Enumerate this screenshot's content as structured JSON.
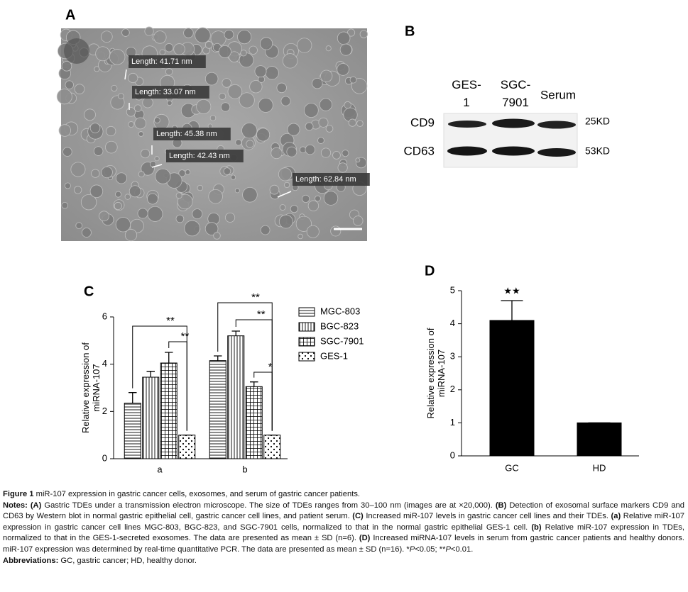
{
  "panels": {
    "a": {
      "letter": "A",
      "measurements": [
        "Length: 41.71 nm",
        "Length: 33.07 nm",
        "Length: 45.38 nm",
        "Length: 42.43 nm",
        "Length: 62.84 nm"
      ]
    },
    "b": {
      "letter": "B",
      "lanes": [
        "GES-1",
        "SGC-7901",
        "Serum"
      ],
      "markers": [
        "CD9",
        "CD63"
      ],
      "sizes": [
        "25KD",
        "53KD"
      ]
    }
  },
  "chart_data": [
    {
      "type": "bar",
      "letter": "C",
      "ylabel": [
        "Relative expression of",
        "miRNA-107"
      ],
      "categories": [
        "a",
        "b"
      ],
      "series": [
        {
          "name": "MGC-803",
          "pattern": "horizontal",
          "values": [
            2.35,
            4.15
          ],
          "errors": [
            0.45,
            0.2
          ]
        },
        {
          "name": "BGC-823",
          "pattern": "vertical",
          "values": [
            3.45,
            5.2
          ],
          "errors": [
            0.25,
            0.2
          ]
        },
        {
          "name": "SGC-7901",
          "pattern": "grid",
          "values": [
            4.05,
            3.05
          ],
          "errors": [
            0.45,
            0.2
          ]
        },
        {
          "name": "GES-1",
          "pattern": "dots",
          "values": [
            1.0,
            1.0
          ],
          "errors": [
            0,
            0
          ]
        }
      ],
      "annotations": [
        "**",
        "**",
        "**",
        "**",
        "*"
      ],
      "ylim": [
        0,
        6
      ],
      "yticks": [
        0,
        2,
        4,
        6
      ],
      "legend": "right"
    },
    {
      "type": "bar",
      "letter": "D",
      "ylabel": [
        "Relative expression of",
        "miRNA-107"
      ],
      "categories": [
        "GC",
        "HD"
      ],
      "values": [
        4.1,
        1.0
      ],
      "errors": [
        0.6,
        0
      ],
      "color": "#000000",
      "annotations": [
        "★★"
      ],
      "ylim": [
        0,
        5
      ],
      "yticks": [
        0,
        1,
        2,
        3,
        4,
        5
      ]
    }
  ],
  "caption": [
    [
      {
        "text": "Figure 1",
        "style": "bold"
      },
      {
        "text": " miR-107 expression in gastric cancer cells, exosomes, and serum of gastric cancer patients."
      }
    ],
    [
      {
        "text": "Notes:",
        "style": "bold"
      },
      {
        "text": " "
      },
      {
        "text": "(A)",
        "style": "bold"
      },
      {
        "text": " Gastric TDEs under a transmission electron microscope. The size of TDEs ranges from 30–100 nm (images are at ×20,000). "
      },
      {
        "text": "(B)",
        "style": "bold"
      },
      {
        "text": " Detection of exosomal surface markers CD9 and CD63 by Western blot in normal gastric epithelial cell, gastric cancer cell lines, and patient serum. "
      },
      {
        "text": "(C)",
        "style": "bold"
      },
      {
        "text": " Increased miR-107 levels in gastric cancer cell lines and their TDEs. "
      },
      {
        "text": "(a)",
        "style": "bold"
      },
      {
        "text": " Relative miR-107 expression in gastric cancer cell lines MGC-803, BGC-823, and SGC-7901 cells, normalized to that in the normal gastric epithelial GES-1 cell. "
      },
      {
        "text": "(b)",
        "style": "bold"
      },
      {
        "text": " Relative miR-107 expression in TDEs, normalized to that in the GES-1-secreted exosomes. The data are presented as mean ± SD (n=6). "
      },
      {
        "text": "(D)",
        "style": "bold"
      },
      {
        "text": " Increased miRNA-107 levels in serum from gastric cancer patients and healthy donors. miR-107 expression was determined by real-time quantitative PCR. The data are presented as mean ± SD (n=16). *"
      },
      {
        "text": "P",
        "style": "italic"
      },
      {
        "text": "<0.05; **"
      },
      {
        "text": "P",
        "style": "italic"
      },
      {
        "text": "<0.01."
      }
    ],
    [
      {
        "text": "Abbreviations:",
        "style": "bold"
      },
      {
        "text": " GC, gastric cancer; HD, healthy donor."
      }
    ]
  ]
}
